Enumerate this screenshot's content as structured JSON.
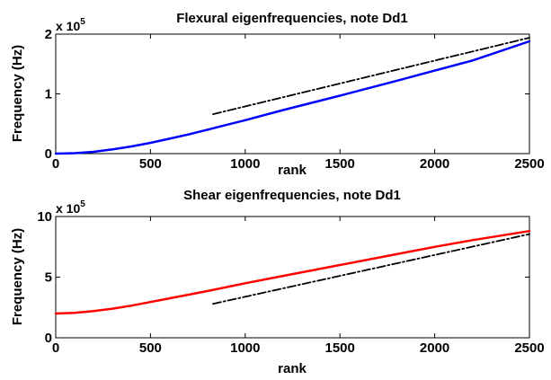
{
  "chart_data": [
    {
      "type": "line",
      "title": "Flexural eigenfrequencies, note Dd1",
      "xlabel": "rank",
      "ylabel": "Frequency (Hz)",
      "y_multiplier_label": "x 10",
      "y_multiplier_exponent": "5",
      "xlim": [
        0,
        2500
      ],
      "ylim": [
        0,
        2
      ],
      "xticks": [
        "0",
        "500",
        "1000",
        "1500",
        "2000",
        "2500"
      ],
      "yticks": [
        "0",
        "1",
        "2"
      ],
      "grid": false,
      "series": [
        {
          "style": "solid",
          "color": "#0000ff",
          "x": [
            0,
            100,
            200,
            300,
            400,
            500,
            600,
            700,
            800,
            1000,
            1200,
            1500,
            1800,
            2000,
            2200,
            2500
          ],
          "y": [
            0,
            0.008,
            0.03,
            0.07,
            0.12,
            0.18,
            0.25,
            0.32,
            0.4,
            0.56,
            0.73,
            0.97,
            1.22,
            1.39,
            1.56,
            1.88
          ]
        },
        {
          "style": "dash-dot",
          "color": "#000000",
          "x": [
            830,
            2500
          ],
          "y": [
            0.66,
            1.94
          ]
        }
      ]
    },
    {
      "type": "line",
      "title": "Shear eigenfrequencies, note Dd1",
      "xlabel": "rank",
      "ylabel": "Frequency (Hz)",
      "y_multiplier_label": "x 10",
      "y_multiplier_exponent": "5",
      "xlim": [
        0,
        2500
      ],
      "ylim": [
        0,
        10
      ],
      "xticks": [
        "0",
        "500",
        "1000",
        "1500",
        "2000",
        "2500"
      ],
      "yticks": [
        "0",
        "5",
        "10"
      ],
      "grid": false,
      "series": [
        {
          "style": "solid",
          "color": "#ff0000",
          "x": [
            0,
            100,
            200,
            300,
            400,
            500,
            600,
            800,
            1000,
            1200,
            1500,
            1800,
            2000,
            2200,
            2500
          ],
          "y": [
            2.0,
            2.05,
            2.2,
            2.4,
            2.65,
            2.95,
            3.25,
            3.85,
            4.5,
            5.1,
            6.0,
            6.9,
            7.5,
            8.05,
            8.8
          ]
        },
        {
          "style": "dash-dot",
          "color": "#000000",
          "x": [
            830,
            2500
          ],
          "y": [
            2.8,
            8.55
          ]
        }
      ]
    }
  ]
}
